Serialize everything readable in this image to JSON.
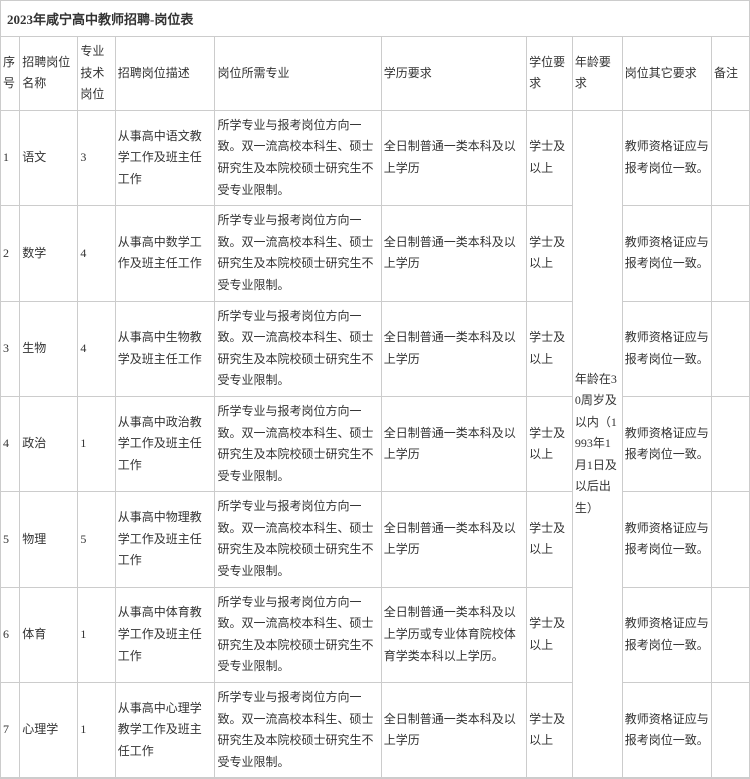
{
  "title": "2023年咸宁高中教师招聘-岗位表",
  "headers": {
    "seq": "序号",
    "position": "招聘岗位名称",
    "tech": "专业技术岗位",
    "desc": "招聘岗位描述",
    "major": "岗位所需专业",
    "edu": "学历要求",
    "degree": "学位要求",
    "age": "年龄要求",
    "other": "岗位其它要求",
    "note": "备注"
  },
  "age_text": "年龄在30周岁及以内（1993年1月1日及以后出生）",
  "rows": [
    {
      "seq": "1",
      "position": "语文",
      "tech": "3",
      "desc": "从事高中语文教学工作及班主任工作",
      "major": "所学专业与报考岗位方向一致。双一流高校本科生、硕士研究生及本院校硕士研究生不受专业限制。",
      "edu": "全日制普通一类本科及以上学历",
      "degree": "学士及以上",
      "other": "教师资格证应与报考岗位一致。",
      "note": ""
    },
    {
      "seq": "2",
      "position": "数学",
      "tech": "4",
      "desc": "从事高中数学工作及班主任工作",
      "major": "所学专业与报考岗位方向一致。双一流高校本科生、硕士研究生及本院校硕士研究生不受专业限制。",
      "edu": "全日制普通一类本科及以上学历",
      "degree": "学士及以上",
      "other": "教师资格证应与报考岗位一致。",
      "note": ""
    },
    {
      "seq": "3",
      "position": "生物",
      "tech": "4",
      "desc": "从事高中生物教学及班主任工作",
      "major": "所学专业与报考岗位方向一致。双一流高校本科生、硕士研究生及本院校硕士研究生不受专业限制。",
      "edu": "全日制普通一类本科及以上学历",
      "degree": "学士及以上",
      "other": "教师资格证应与报考岗位一致。",
      "note": ""
    },
    {
      "seq": "4",
      "position": "政治",
      "tech": "1",
      "desc": "从事高中政治教学工作及班主任工作",
      "major": "所学专业与报考岗位方向一致。双一流高校本科生、硕士研究生及本院校硕士研究生不受专业限制。",
      "edu": "全日制普通一类本科及以上学历",
      "degree": "学士及以上",
      "other": "教师资格证应与报考岗位一致。",
      "note": ""
    },
    {
      "seq": "5",
      "position": "物理",
      "tech": "5",
      "desc": "从事高中物理教学工作及班主任工作",
      "major": "所学专业与报考岗位方向一致。双一流高校本科生、硕士研究生及本院校硕士研究生不受专业限制。",
      "edu": "全日制普通一类本科及以上学历",
      "degree": "学士及以上",
      "other": "教师资格证应与报考岗位一致。",
      "note": ""
    },
    {
      "seq": "6",
      "position": "体育",
      "tech": "1",
      "desc": "从事高中体育教学工作及班主任工作",
      "major": "所学专业与报考岗位方向一致。双一流高校本科生、硕士研究生及本院校硕士研究生不受专业限制。",
      "edu": "全日制普通一类本科及以上学历或专业体育院校体育学类本科以上学历。",
      "degree": "学士及以上",
      "other": "教师资格证应与报考岗位一致。",
      "note": ""
    },
    {
      "seq": "7",
      "position": "心理学",
      "tech": "1",
      "desc": "从事高中心理学教学工作及班主任工作",
      "major": "所学专业与报考岗位方向一致。双一流高校本科生、硕士研究生及本院校硕士研究生不受专业限制。",
      "edu": "全日制普通一类本科及以上学历",
      "degree": "学士及以上",
      "other": "教师资格证应与报考岗位一致。",
      "note": ""
    }
  ]
}
